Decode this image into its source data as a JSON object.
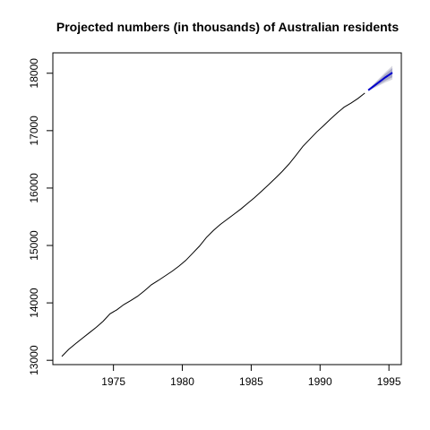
{
  "chart_data": {
    "type": "line",
    "title": "Projected numbers (in thousands) of Australian residents",
    "xlabel": "",
    "ylabel": "",
    "xlim": [
      1970.6,
      1995.9
    ],
    "ylim": [
      12925,
      18355
    ],
    "x_ticks": [
      1975,
      1980,
      1985,
      1990,
      1995
    ],
    "y_ticks": [
      13000,
      14000,
      15000,
      16000,
      17000,
      18000
    ],
    "grid": false,
    "legend": "none",
    "series": [
      {
        "kind": "observed",
        "color": "#000000",
        "points": [
          [
            1971.25,
            13067
          ],
          [
            1971.75,
            13190
          ],
          [
            1972.25,
            13290
          ],
          [
            1972.75,
            13385
          ],
          [
            1973.25,
            13480
          ],
          [
            1973.75,
            13575
          ],
          [
            1974.25,
            13680
          ],
          [
            1974.75,
            13810
          ],
          [
            1975.25,
            13880
          ],
          [
            1975.75,
            13970
          ],
          [
            1976.25,
            14040
          ],
          [
            1976.75,
            14115
          ],
          [
            1977.25,
            14210
          ],
          [
            1977.75,
            14315
          ],
          [
            1978.25,
            14390
          ],
          [
            1978.75,
            14470
          ],
          [
            1979.25,
            14550
          ],
          [
            1979.75,
            14640
          ],
          [
            1980.25,
            14740
          ],
          [
            1980.75,
            14865
          ],
          [
            1981.25,
            14990
          ],
          [
            1981.75,
            15140
          ],
          [
            1982.25,
            15260
          ],
          [
            1982.75,
            15365
          ],
          [
            1983.25,
            15455
          ],
          [
            1983.75,
            15545
          ],
          [
            1984.25,
            15635
          ],
          [
            1984.75,
            15735
          ],
          [
            1985.25,
            15835
          ],
          [
            1985.75,
            15945
          ],
          [
            1986.25,
            16055
          ],
          [
            1986.75,
            16170
          ],
          [
            1987.25,
            16290
          ],
          [
            1987.75,
            16420
          ],
          [
            1988.25,
            16570
          ],
          [
            1988.75,
            16725
          ],
          [
            1989.25,
            16850
          ],
          [
            1989.75,
            16975
          ],
          [
            1990.25,
            17085
          ],
          [
            1990.75,
            17200
          ],
          [
            1991.25,
            17310
          ],
          [
            1991.75,
            17410
          ],
          [
            1992.25,
            17480
          ],
          [
            1992.75,
            17560
          ],
          [
            1993.25,
            17655
          ]
        ]
      },
      {
        "kind": "forecast",
        "color": "#0000cc",
        "points": [
          [
            1993.5,
            17705
          ],
          [
            1993.75,
            17750
          ],
          [
            1994.0,
            17795
          ],
          [
            1994.25,
            17840
          ],
          [
            1994.5,
            17885
          ],
          [
            1994.75,
            17930
          ],
          [
            1995.0,
            17970
          ],
          [
            1995.25,
            18010
          ]
        ],
        "band80": [
          [
            17695,
            17715
          ],
          [
            17730,
            17770
          ],
          [
            17765,
            17825
          ],
          [
            17800,
            17880
          ],
          [
            17835,
            17935
          ],
          [
            17870,
            17990
          ],
          [
            17900,
            18040
          ],
          [
            17930,
            18090
          ]
        ],
        "band95": [
          [
            17690,
            17720
          ],
          [
            17720,
            17780
          ],
          [
            17750,
            17840
          ],
          [
            17780,
            17900
          ],
          [
            17810,
            17960
          ],
          [
            17840,
            18020
          ],
          [
            17865,
            18075
          ],
          [
            17890,
            18130
          ]
        ],
        "band80_color": "#a8a8c8",
        "band95_color": "#d8d8e0"
      }
    ]
  }
}
